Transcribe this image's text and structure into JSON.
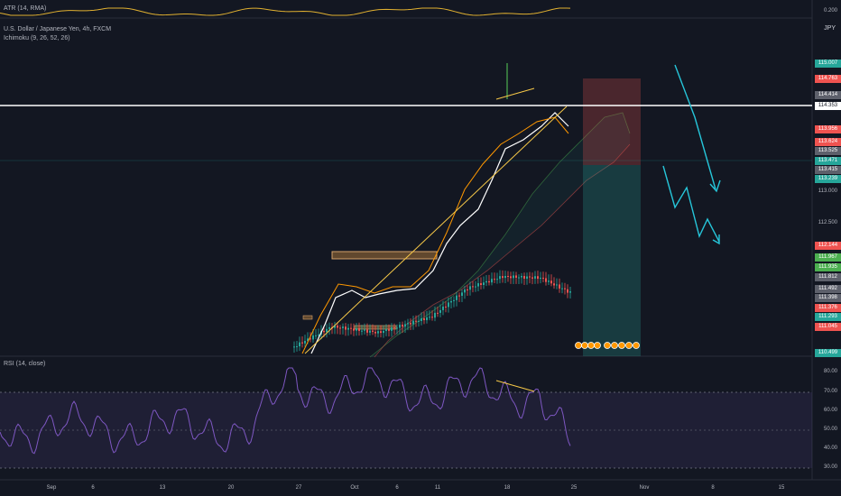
{
  "indicators": {
    "atr_legend": "ATR (14, RMA)",
    "symbol_legend": "U.S. Dollar / Japanese Yen, 4h, FXCM",
    "ichimoku_legend": "Ichimoku (9, 26, 52, 26)",
    "rsi_legend": "RSI (14, close)"
  },
  "currency_label": "JPY",
  "atr_axis_label": "0.200",
  "price_axis": {
    "plain_labels": [
      {
        "text": "113.000"
      },
      {
        "text": "112.500"
      }
    ],
    "badges": [
      {
        "text": "115.007",
        "color": "#26a69a"
      },
      {
        "text": "114.763",
        "color": "#ef5350"
      },
      {
        "text": "114.414",
        "color": "#5d606b"
      },
      {
        "text": "114.353",
        "color": "#ffffff"
      },
      {
        "text": "113.956",
        "color": "#ef5350"
      },
      {
        "text": "113.624",
        "color": "#ef5350"
      },
      {
        "text": "113.525",
        "color": "#5d606b"
      },
      {
        "text": "113.471",
        "color": "#26a69a"
      },
      {
        "text": "113.415",
        "color": "#5d606b"
      },
      {
        "text": "113.239",
        "color": "#26a69a"
      },
      {
        "text": "112.144",
        "color": "#ef5350"
      },
      {
        "text": "111.967",
        "color": "#4caf50"
      },
      {
        "text": "111.935",
        "color": "#4caf50"
      },
      {
        "text": "111.812",
        "color": "#5d606b"
      },
      {
        "text": "111.492",
        "color": "#5d606b"
      },
      {
        "text": "111.398",
        "color": "#5d606b"
      },
      {
        "text": "111.376",
        "color": "#ef5350"
      },
      {
        "text": "111.293",
        "color": "#26a69a"
      },
      {
        "text": "111.045",
        "color": "#ef5350"
      },
      {
        "text": "110.499",
        "color": "#26a69a"
      }
    ]
  },
  "rsi_axis": [
    "80.00",
    "70.00",
    "60.00",
    "50.00",
    "40.00",
    "30.00"
  ],
  "date_axis": [
    "Sep",
    "6",
    "13",
    "20",
    "27",
    "Oct",
    "6",
    "11",
    "18",
    "25",
    "Nov",
    "8",
    "15"
  ],
  "colors": {
    "background": "#131722",
    "up_candle": "#26a69a",
    "down_candle": "#ef5350",
    "rsi_line": "#7e57c2",
    "rsi_band": "#7e57c2",
    "atr_line": "#e0b030",
    "tenkan": "#ffffff",
    "kijun": "#ff9800",
    "trendline": "#f7c948",
    "projection_arrow": "#26c6da"
  }
}
